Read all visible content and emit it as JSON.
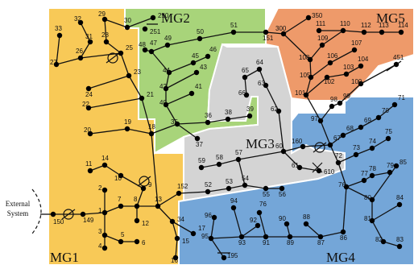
{
  "microgrids": [
    {
      "id": "mg1",
      "label": "MG1",
      "fill": "#f8c957"
    },
    {
      "id": "mg2",
      "label": "MG2",
      "fill": "#a8d47a"
    },
    {
      "id": "mg3",
      "label": "MG3",
      "fill": "#d4d4d4"
    },
    {
      "id": "mg4",
      "label": "MG4",
      "fill": "#74a6d8"
    },
    {
      "id": "mg5",
      "label": "MG5",
      "fill": "#ee9a6a"
    }
  ],
  "external_system_label": [
    "External",
    "System"
  ],
  "nodes": [
    {
      "id": "150",
      "label": "150"
    },
    {
      "id": "149",
      "label": "149"
    },
    {
      "id": "1",
      "label": "1"
    },
    {
      "id": "2",
      "label": "2"
    },
    {
      "id": "3",
      "label": "3"
    },
    {
      "id": "4",
      "label": "4"
    },
    {
      "id": "5",
      "label": "5"
    },
    {
      "id": "6",
      "label": "6"
    },
    {
      "id": "7",
      "label": "7"
    },
    {
      "id": "8",
      "label": "8"
    },
    {
      "id": "9",
      "label": "9"
    },
    {
      "id": "10",
      "label": "10"
    },
    {
      "id": "11",
      "label": "11"
    },
    {
      "id": "12",
      "label": "12"
    },
    {
      "id": "13",
      "label": "13"
    },
    {
      "id": "14",
      "label": "14"
    },
    {
      "id": "15",
      "label": "15"
    },
    {
      "id": "16",
      "label": "16"
    },
    {
      "id": "17",
      "label": "17"
    },
    {
      "id": "18",
      "label": "18"
    },
    {
      "id": "19",
      "label": "19"
    },
    {
      "id": "20",
      "label": "20"
    },
    {
      "id": "21",
      "label": "21"
    },
    {
      "id": "22",
      "label": "22"
    },
    {
      "id": "23",
      "label": "23"
    },
    {
      "id": "24",
      "label": "24"
    },
    {
      "id": "25",
      "label": "25"
    },
    {
      "id": "26",
      "label": "26"
    },
    {
      "id": "27",
      "label": "27"
    },
    {
      "id": "28",
      "label": "28"
    },
    {
      "id": "29",
      "label": "29"
    },
    {
      "id": "30",
      "label": "30"
    },
    {
      "id": "31",
      "label": "31"
    },
    {
      "id": "32",
      "label": "32"
    },
    {
      "id": "33",
      "label": "33"
    },
    {
      "id": "34",
      "label": "34"
    },
    {
      "id": "250",
      "label": "250"
    },
    {
      "id": "251",
      "label": "251"
    },
    {
      "id": "35",
      "label": "35"
    },
    {
      "id": "36",
      "label": "36"
    },
    {
      "id": "37",
      "label": "37"
    },
    {
      "id": "38",
      "label": "38"
    },
    {
      "id": "39",
      "label": "39"
    },
    {
      "id": "40",
      "label": "40"
    },
    {
      "id": "41",
      "label": "41"
    },
    {
      "id": "42",
      "label": "42"
    },
    {
      "id": "43",
      "label": "43"
    },
    {
      "id": "44",
      "label": "44"
    },
    {
      "id": "45",
      "label": "45"
    },
    {
      "id": "46",
      "label": "46"
    },
    {
      "id": "47",
      "label": "47"
    },
    {
      "id": "48",
      "label": "48"
    },
    {
      "id": "49",
      "label": "49"
    },
    {
      "id": "50",
      "label": "50"
    },
    {
      "id": "51",
      "label": "51"
    },
    {
      "id": "151",
      "label": "151"
    },
    {
      "id": "300",
      "label": "300"
    },
    {
      "id": "350",
      "label": "350"
    },
    {
      "id": "101",
      "label": "101"
    },
    {
      "id": "102",
      "label": "102"
    },
    {
      "id": "103",
      "label": "103"
    },
    {
      "id": "104",
      "label": "104"
    },
    {
      "id": "105",
      "label": "105"
    },
    {
      "id": "106",
      "label": "106"
    },
    {
      "id": "107",
      "label": "107"
    },
    {
      "id": "108",
      "label": "108"
    },
    {
      "id": "109",
      "label": "109"
    },
    {
      "id": "110",
      "label": "110"
    },
    {
      "id": "111",
      "label": "111"
    },
    {
      "id": "112",
      "label": "112"
    },
    {
      "id": "113",
      "label": "113"
    },
    {
      "id": "114",
      "label": "114"
    },
    {
      "id": "152",
      "label": "152"
    },
    {
      "id": "52",
      "label": "52"
    },
    {
      "id": "53",
      "label": "53"
    },
    {
      "id": "54",
      "label": "54"
    },
    {
      "id": "55",
      "label": "55"
    },
    {
      "id": "56",
      "label": "56"
    },
    {
      "id": "57",
      "label": "57"
    },
    {
      "id": "58",
      "label": "58"
    },
    {
      "id": "59",
      "label": "59"
    },
    {
      "id": "60",
      "label": "60"
    },
    {
      "id": "61",
      "label": "61"
    },
    {
      "id": "62",
      "label": "62"
    },
    {
      "id": "63",
      "label": "63"
    },
    {
      "id": "64",
      "label": "64"
    },
    {
      "id": "65",
      "label": "65"
    },
    {
      "id": "66",
      "label": "66"
    },
    {
      "id": "160",
      "label": "160"
    },
    {
      "id": "610",
      "label": "610"
    },
    {
      "id": "67",
      "label": "67"
    },
    {
      "id": "68",
      "label": "68"
    },
    {
      "id": "69",
      "label": "69"
    },
    {
      "id": "70",
      "label": "70"
    },
    {
      "id": "71",
      "label": "71"
    },
    {
      "id": "72",
      "label": "72"
    },
    {
      "id": "73",
      "label": "73"
    },
    {
      "id": "74",
      "label": "74"
    },
    {
      "id": "75",
      "label": "75"
    },
    {
      "id": "76",
      "label": "76"
    },
    {
      "id": "77",
      "label": "77"
    },
    {
      "id": "78",
      "label": "78"
    },
    {
      "id": "79",
      "label": "79"
    },
    {
      "id": "80",
      "label": "80"
    },
    {
      "id": "81",
      "label": "81"
    },
    {
      "id": "82",
      "label": "82"
    },
    {
      "id": "83",
      "label": "83"
    },
    {
      "id": "84",
      "label": "84"
    },
    {
      "id": "85",
      "label": "85"
    },
    {
      "id": "86",
      "label": "86"
    },
    {
      "id": "87",
      "label": "87"
    },
    {
      "id": "88",
      "label": "88"
    },
    {
      "id": "89",
      "label": "89"
    },
    {
      "id": "90",
      "label": "90"
    },
    {
      "id": "91",
      "label": "91"
    },
    {
      "id": "92",
      "label": "92"
    },
    {
      "id": "93",
      "label": "93"
    },
    {
      "id": "94",
      "label": "94"
    },
    {
      "id": "95",
      "label": "95"
    },
    {
      "id": "96",
      "label": "96"
    },
    {
      "id": "97",
      "label": "97"
    },
    {
      "id": "98",
      "label": "98"
    },
    {
      "id": "99",
      "label": "99"
    },
    {
      "id": "100",
      "label": "100"
    },
    {
      "id": "195",
      "label": "195"
    },
    {
      "id": "451",
      "label": "451"
    },
    {
      "id": "76b",
      "label": "76"
    }
  ]
}
